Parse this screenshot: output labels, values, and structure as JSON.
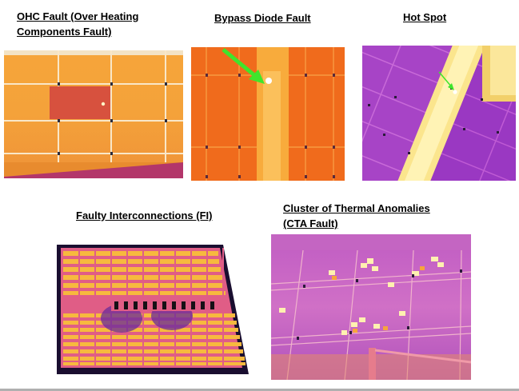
{
  "figure": {
    "panels": [
      {
        "id": "ohc",
        "caption_lines": [
          "OHC Fault (Over Heating",
          "Components Fault)"
        ],
        "image_subject": "Thermal image of PV module with overheated cell region"
      },
      {
        "id": "bypass",
        "caption_lines": [
          "Bypass Diode Fault"
        ],
        "image_subject": "Thermal image with hot substring and green arrow pointing to hot point"
      },
      {
        "id": "hotspot",
        "caption_lines": [
          "Hot Spot"
        ],
        "image_subject": "Thermal image of tilted PV rows with small hot spot marked by green arrow"
      },
      {
        "id": "fi",
        "caption_lines": [
          "Faulty Interconnections (FI)"
        ],
        "image_subject": "Thermal image of full PV array with dark interconnection band"
      },
      {
        "id": "cta",
        "caption_lines": [
          "Cluster of Thermal Anomalies",
          "(CTA Fault)"
        ],
        "image_subject": "Thermal image of PV array with scattered hot cells"
      }
    ]
  },
  "colors": {
    "thermal_hot": "#fff3a0",
    "thermal_warm": "#f7a21c",
    "thermal_mid": "#e3566e",
    "thermal_cool": "#8a2aa8",
    "arrow": "#3fe52c"
  }
}
